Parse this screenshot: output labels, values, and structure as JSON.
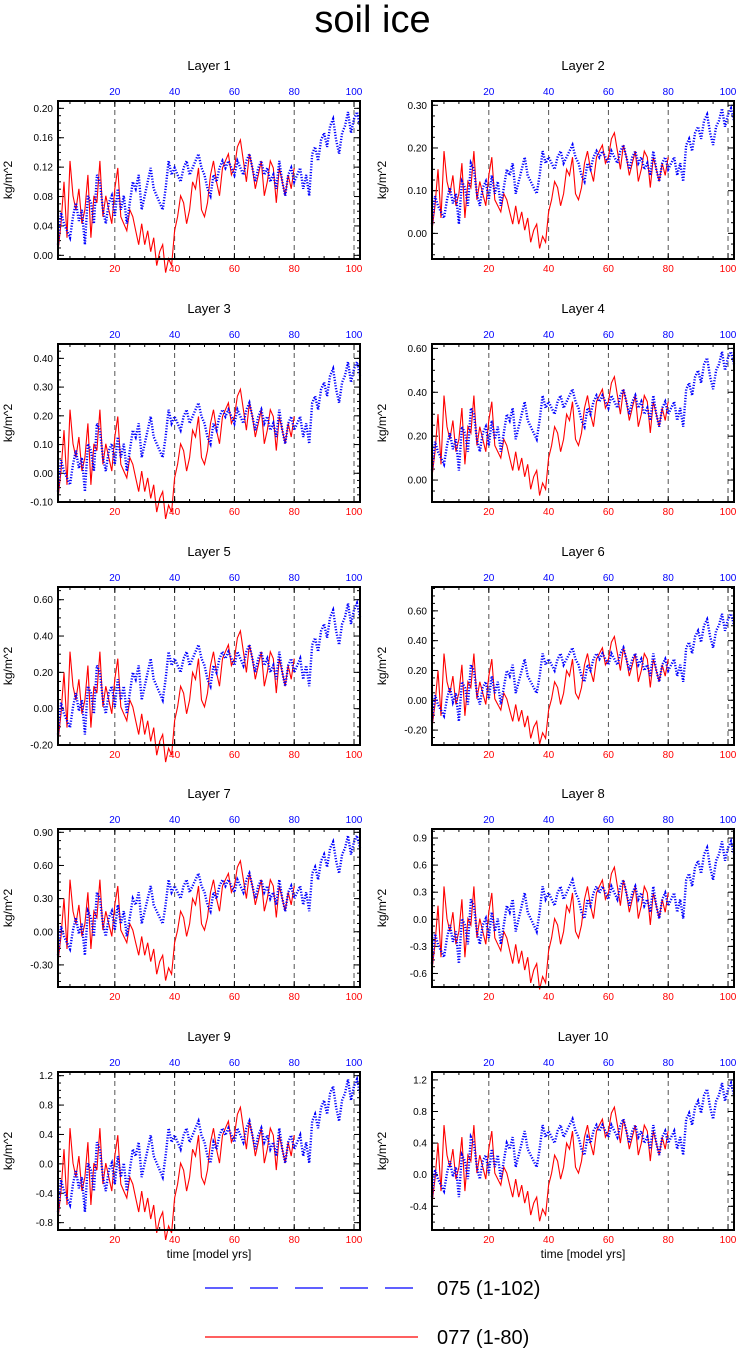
{
  "title": "soil ice",
  "colors": {
    "series_075": "#0000ff",
    "series_077": "#ff0000",
    "axis": "#000000",
    "grid": "#555555"
  },
  "xlabel": "time [model yrs]",
  "ylabel": "kg/m^2",
  "legend": {
    "series_075_label": "075 (1-102)",
    "series_077_label": "077 (1-80)"
  },
  "chart_data": [
    {
      "type": "line",
      "title": "Layer 1",
      "ylabel": "kg/m^2",
      "xlim": [
        1,
        102
      ],
      "ylim": [
        -0.005,
        0.21
      ],
      "yticks": [
        "0.00",
        "0.04",
        "0.08",
        "0.12",
        "0.16",
        "0.20"
      ],
      "ytick_values": [
        0,
        0.04,
        0.08,
        0.12,
        0.16,
        0.2
      ],
      "xticks_bottom": [
        "20",
        "40",
        "60",
        "80",
        "100"
      ],
      "xticks_top": [
        "20",
        "40",
        "60",
        "80",
        "100"
      ],
      "gridlines_x": [
        20,
        40,
        60,
        80,
        100
      ],
      "series": [
        {
          "name": "075 (1-102)",
          "color": "#0000ff",
          "style": "dotted",
          "x_range": [
            1,
            102
          ]
        },
        {
          "name": "077 (1-80)",
          "color": "#ff0000",
          "style": "solid",
          "x_range": [
            1,
            80
          ]
        }
      ]
    },
    {
      "type": "line",
      "title": "Layer 2",
      "ylabel": "kg/m^2",
      "xlim": [
        1,
        102
      ],
      "ylim": [
        -0.06,
        0.31
      ],
      "yticks": [
        "0.00",
        "0.10",
        "0.20",
        "0.30"
      ],
      "ytick_values": [
        0,
        0.1,
        0.2,
        0.3
      ],
      "xticks_bottom": [
        "20",
        "40",
        "60",
        "80",
        "100"
      ],
      "xticks_top": [
        "20",
        "40",
        "60",
        "80",
        "100"
      ],
      "gridlines_x": [
        20,
        40,
        60,
        80,
        100
      ],
      "series": [
        {
          "name": "075 (1-102)",
          "color": "#0000ff",
          "style": "dotted",
          "x_range": [
            1,
            102
          ]
        },
        {
          "name": "077 (1-80)",
          "color": "#ff0000",
          "style": "solid",
          "x_range": [
            1,
            80
          ]
        }
      ]
    },
    {
      "type": "line",
      "title": "Layer 3",
      "ylabel": "kg/m^2",
      "xlim": [
        1,
        102
      ],
      "ylim": [
        -0.1,
        0.45
      ],
      "yticks": [
        "-0.10",
        "0.00",
        "0.10",
        "0.20",
        "0.30",
        "0.40"
      ],
      "ytick_values": [
        -0.1,
        0,
        0.1,
        0.2,
        0.3,
        0.4
      ],
      "xticks_bottom": [
        "20",
        "40",
        "60",
        "80",
        "100"
      ],
      "xticks_top": [
        "20",
        "40",
        "60",
        "80",
        "100"
      ],
      "gridlines_x": [
        20,
        40,
        60,
        80,
        100
      ],
      "series": [
        {
          "name": "075 (1-102)",
          "color": "#0000ff",
          "style": "dotted",
          "x_range": [
            1,
            102
          ]
        },
        {
          "name": "077 (1-80)",
          "color": "#ff0000",
          "style": "solid",
          "x_range": [
            1,
            80
          ]
        }
      ]
    },
    {
      "type": "line",
      "title": "Layer 4",
      "ylabel": "kg/m^2",
      "xlim": [
        1,
        102
      ],
      "ylim": [
        -0.1,
        0.62
      ],
      "yticks": [
        "0.00",
        "0.20",
        "0.40",
        "0.60"
      ],
      "ytick_values": [
        0,
        0.2,
        0.4,
        0.6
      ],
      "xticks_bottom": [
        "20",
        "40",
        "60",
        "80",
        "100"
      ],
      "xticks_top": [
        "20",
        "40",
        "60",
        "80",
        "100"
      ],
      "gridlines_x": [
        20,
        40,
        60,
        80,
        100
      ],
      "series": [
        {
          "name": "075 (1-102)",
          "color": "#0000ff",
          "style": "dotted",
          "x_range": [
            1,
            102
          ]
        },
        {
          "name": "077 (1-80)",
          "color": "#ff0000",
          "style": "solid",
          "x_range": [
            1,
            80
          ]
        }
      ]
    },
    {
      "type": "line",
      "title": "Layer 5",
      "ylabel": "kg/m^2",
      "xlim": [
        1,
        102
      ],
      "ylim": [
        -0.2,
        0.67
      ],
      "yticks": [
        "-0.20",
        "0.00",
        "0.20",
        "0.40",
        "0.60"
      ],
      "ytick_values": [
        -0.2,
        0,
        0.2,
        0.4,
        0.6
      ],
      "xticks_bottom": [
        "20",
        "40",
        "60",
        "80",
        "100"
      ],
      "xticks_top": [
        "20",
        "40",
        "60",
        "80",
        "100"
      ],
      "gridlines_x": [
        20,
        40,
        60,
        80,
        100
      ],
      "series": [
        {
          "name": "075 (1-102)",
          "color": "#0000ff",
          "style": "dotted",
          "x_range": [
            1,
            102
          ]
        },
        {
          "name": "077 (1-80)",
          "color": "#ff0000",
          "style": "solid",
          "x_range": [
            1,
            80
          ]
        }
      ]
    },
    {
      "type": "line",
      "title": "Layer 6",
      "ylabel": "kg/m^2",
      "xlim": [
        1,
        102
      ],
      "ylim": [
        -0.3,
        0.76
      ],
      "yticks": [
        "-0.20",
        "0.00",
        "0.20",
        "0.40",
        "0.60"
      ],
      "ytick_values": [
        -0.2,
        0,
        0.2,
        0.4,
        0.6
      ],
      "xticks_bottom": [
        "20",
        "40",
        "60",
        "80",
        "100"
      ],
      "xticks_top": [
        "20",
        "40",
        "60",
        "80",
        "100"
      ],
      "gridlines_x": [
        20,
        40,
        60,
        80,
        100
      ],
      "series": [
        {
          "name": "075 (1-102)",
          "color": "#0000ff",
          "style": "dotted",
          "x_range": [
            1,
            102
          ]
        },
        {
          "name": "077 (1-80)",
          "color": "#ff0000",
          "style": "solid",
          "x_range": [
            1,
            80
          ]
        }
      ]
    },
    {
      "type": "line",
      "title": "Layer 7",
      "ylabel": "kg/m^2",
      "xlim": [
        1,
        102
      ],
      "ylim": [
        -0.5,
        0.93
      ],
      "yticks": [
        "-0.30",
        "0.00",
        "0.30",
        "0.60",
        "0.90"
      ],
      "ytick_values": [
        -0.3,
        0,
        0.3,
        0.6,
        0.9
      ],
      "xticks_bottom": [
        "20",
        "40",
        "60",
        "80",
        "100"
      ],
      "xticks_top": [
        "20",
        "40",
        "60",
        "80",
        "100"
      ],
      "gridlines_x": [
        20,
        40,
        60,
        80,
        100
      ],
      "series": [
        {
          "name": "075 (1-102)",
          "color": "#0000ff",
          "style": "dotted",
          "x_range": [
            1,
            102
          ]
        },
        {
          "name": "077 (1-80)",
          "color": "#ff0000",
          "style": "solid",
          "x_range": [
            1,
            80
          ]
        }
      ]
    },
    {
      "type": "line",
      "title": "Layer 8",
      "ylabel": "kg/m^2",
      "xlim": [
        1,
        102
      ],
      "ylim": [
        -0.75,
        1.0
      ],
      "yticks": [
        "-0.6",
        "-0.3",
        "0.0",
        "0.3",
        "0.6",
        "0.9"
      ],
      "ytick_values": [
        -0.6,
        -0.3,
        0,
        0.3,
        0.6,
        0.9
      ],
      "xticks_bottom": [
        "20",
        "40",
        "60",
        "80",
        "100"
      ],
      "xticks_top": [
        "20",
        "40",
        "60",
        "80",
        "100"
      ],
      "gridlines_x": [
        20,
        40,
        60,
        80,
        100
      ],
      "series": [
        {
          "name": "075 (1-102)",
          "color": "#0000ff",
          "style": "dotted",
          "x_range": [
            1,
            102
          ]
        },
        {
          "name": "077 (1-80)",
          "color": "#ff0000",
          "style": "solid",
          "x_range": [
            1,
            80
          ]
        }
      ]
    },
    {
      "type": "line",
      "title": "Layer 9",
      "ylabel": "kg/m^2",
      "xlim": [
        1,
        102
      ],
      "ylim": [
        -0.9,
        1.25
      ],
      "yticks": [
        "-0.8",
        "-0.4",
        "0.0",
        "0.4",
        "0.8",
        "1.2"
      ],
      "ytick_values": [
        -0.8,
        -0.4,
        0,
        0.4,
        0.8,
        1.2
      ],
      "xticks_bottom": [
        "20",
        "40",
        "60",
        "80",
        "100"
      ],
      "xticks_top": [
        "20",
        "40",
        "60",
        "80",
        "100"
      ],
      "gridlines_x": [
        20,
        40,
        60,
        80,
        100
      ],
      "series": [
        {
          "name": "075 (1-102)",
          "color": "#0000ff",
          "style": "dotted",
          "x_range": [
            1,
            102
          ]
        },
        {
          "name": "077 (1-80)",
          "color": "#ff0000",
          "style": "solid",
          "x_range": [
            1,
            80
          ]
        }
      ]
    },
    {
      "type": "line",
      "title": "Layer 10",
      "ylabel": "kg/m^2",
      "xlim": [
        1,
        102
      ],
      "ylim": [
        -0.7,
        1.3
      ],
      "yticks": [
        "-0.4",
        "0.0",
        "0.4",
        "0.8",
        "1.2"
      ],
      "ytick_values": [
        -0.4,
        0,
        0.4,
        0.8,
        1.2
      ],
      "xticks_bottom": [
        "20",
        "40",
        "60",
        "80",
        "100"
      ],
      "xticks_top": [
        "20",
        "40",
        "60",
        "80",
        "100"
      ],
      "gridlines_x": [
        20,
        40,
        60,
        80,
        100
      ],
      "series": [
        {
          "name": "075 (1-102)",
          "color": "#0000ff",
          "style": "dotted",
          "x_range": [
            1,
            102
          ]
        },
        {
          "name": "077 (1-80)",
          "color": "#ff0000",
          "style": "solid",
          "x_range": [
            1,
            80
          ]
        }
      ]
    }
  ],
  "series_shape": {
    "075_x_start": 1,
    "075_values_norm": [
      -0.05,
      0.18,
      0.1,
      0.05,
      0.0,
      0.15,
      0.25,
      0.12,
      0.2,
      -0.05,
      0.3,
      0.25,
      0.1,
      0.45,
      0.4,
      0.2,
      0.1,
      0.25,
      0.3,
      0.15,
      0.35,
      0.2,
      0.3,
      0.1,
      0.25,
      0.4,
      0.35,
      0.45,
      0.2,
      0.3,
      0.4,
      0.5,
      0.35,
      0.3,
      0.25,
      0.2,
      0.35,
      0.55,
      0.45,
      0.5,
      0.45,
      0.4,
      0.5,
      0.55,
      0.45,
      0.5,
      0.55,
      0.6,
      0.5,
      0.45,
      0.35,
      0.3,
      0.45,
      0.4,
      0.5,
      0.55,
      0.5,
      0.55,
      0.5,
      0.45,
      0.55,
      0.5,
      0.45,
      0.55,
      0.6,
      0.5,
      0.4,
      0.5,
      0.55,
      0.45,
      0.5,
      0.4,
      0.45,
      0.35,
      0.55,
      0.4,
      0.3,
      0.45,
      0.5,
      0.4,
      0.45,
      0.5,
      0.35,
      0.45,
      0.3,
      0.6,
      0.65,
      0.55,
      0.7,
      0.75,
      0.65,
      0.8,
      0.85,
      0.7,
      0.6,
      0.75,
      0.8,
      0.9,
      0.75,
      0.85,
      0.9,
      0.8
    ],
    "077_x_start": 1,
    "077_values_norm": [
      -0.1,
      0.1,
      0.4,
      0.0,
      0.55,
      0.3,
      0.2,
      0.35,
      0.1,
      0.2,
      0.45,
      0.0,
      0.3,
      0.25,
      0.55,
      0.15,
      0.3,
      0.2,
      0.1,
      0.35,
      0.5,
      0.15,
      0.1,
      0.05,
      0.2,
      0.15,
      0.05,
      -0.05,
      0.1,
      -0.05,
      0.05,
      -0.1,
      0.0,
      -0.2,
      -0.1,
      -0.05,
      -0.25,
      -0.15,
      -0.2,
      0.05,
      0.15,
      0.3,
      0.25,
      0.1,
      0.2,
      0.4,
      0.35,
      0.5,
      0.2,
      0.15,
      0.25,
      0.45,
      0.55,
      0.4,
      0.3,
      0.5,
      0.55,
      0.6,
      0.45,
      0.5,
      0.65,
      0.7,
      0.55,
      0.4,
      0.6,
      0.5,
      0.35,
      0.45,
      0.55,
      0.3,
      0.4,
      0.55,
      0.5,
      0.25,
      0.5,
      0.4,
      0.3,
      0.45,
      0.35,
      0.5
    ]
  }
}
